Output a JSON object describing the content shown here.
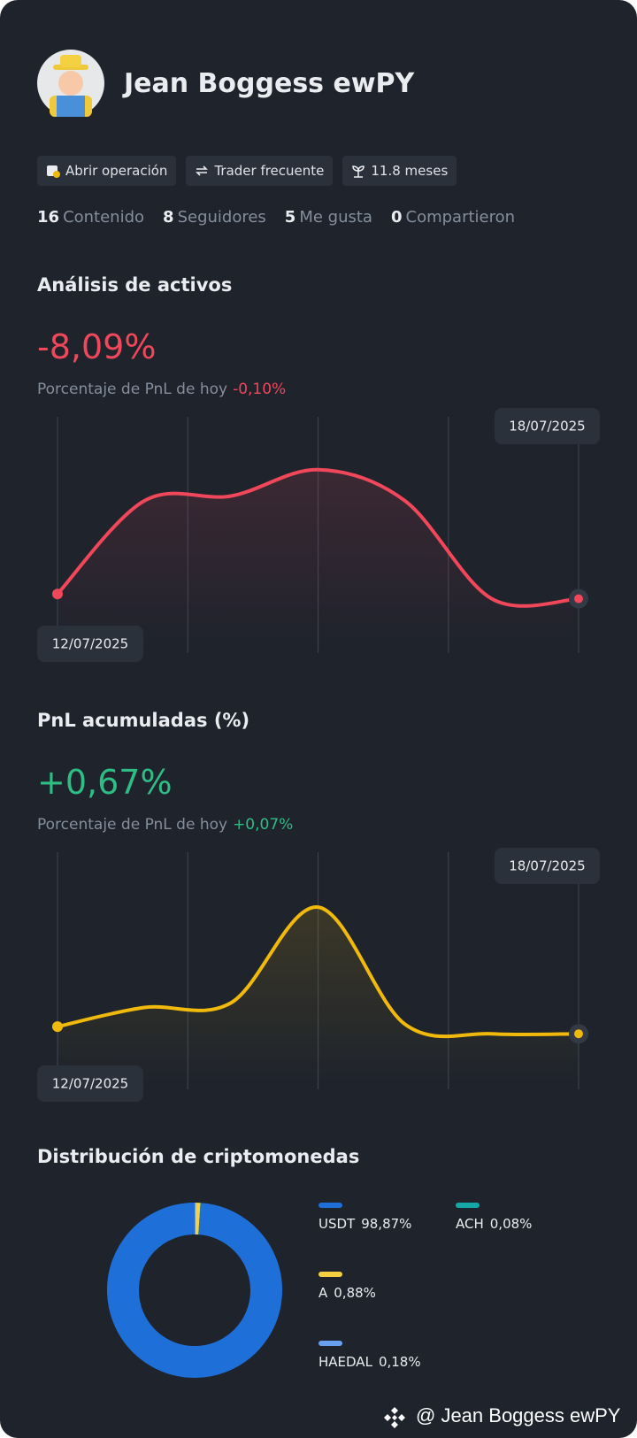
{
  "profile": {
    "name": "Jean Boggess ewPY",
    "badges": [
      "Abrir operación",
      "Trader frecuente",
      "11.8 meses"
    ],
    "stats": [
      {
        "count": 16,
        "label": "Contenido"
      },
      {
        "count": 8,
        "label": "Seguidores"
      },
      {
        "count": 5,
        "label": "Me gusta"
      },
      {
        "count": 0,
        "label": "Compartieron"
      }
    ]
  },
  "chart_data": [
    {
      "type": "line",
      "title": "Análisis de activos",
      "headline": "-8,09%",
      "subtitle": "Porcentaje de PnL de hoy",
      "today": "-0,10%",
      "categories": [
        "12/07/2025",
        null,
        null,
        null,
        null,
        null,
        "18/07/2025"
      ],
      "series": [
        {
          "color": "#f0475a",
          "values": [
            24,
            63,
            65,
            76,
            63,
            22,
            22
          ]
        }
      ],
      "ylim": [
        0,
        100
      ]
    },
    {
      "type": "line",
      "title": "PnL acumuladas (%)",
      "headline": "+0,67%",
      "subtitle": "Porcentaje de PnL de hoy",
      "today": "+0,07%",
      "categories": [
        "12/07/2025",
        null,
        null,
        null,
        null,
        null,
        "18/07/2025"
      ],
      "series": [
        {
          "color": "#f0b90b",
          "values": [
            27,
            35,
            37,
            77,
            28,
            24,
            24
          ]
        }
      ],
      "ylim": [
        0,
        100
      ]
    },
    {
      "type": "pie",
      "title": "Distribución de criptomonedas",
      "donut": true,
      "categories": [
        "USDT",
        "ACH",
        "A",
        "HAEDAL"
      ],
      "values": [
        98.87,
        0.08,
        0.88,
        0.18
      ],
      "value_labels": [
        "98,87%",
        "0,08%",
        "0,88%",
        "0,18%"
      ],
      "colors": [
        "#1f6fd8",
        "#14a8a8",
        "#f5d142",
        "#6aa0f0"
      ]
    }
  ],
  "footer": "@ Jean Boggess ewPY"
}
